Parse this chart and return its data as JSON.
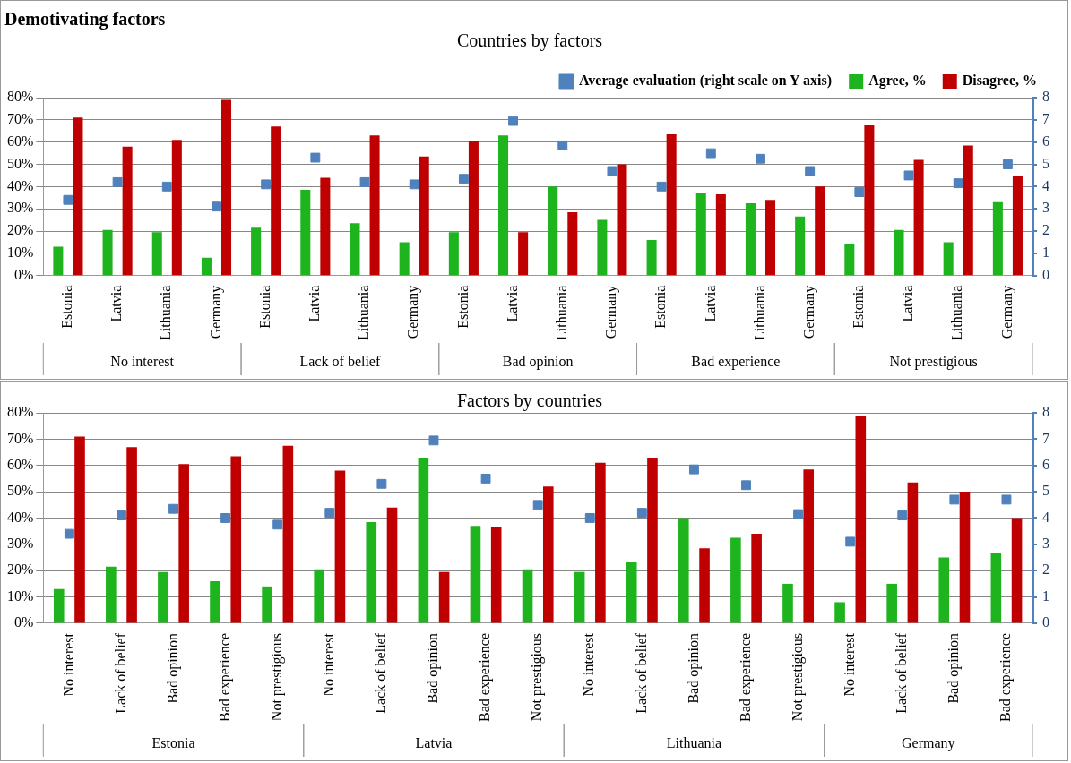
{
  "chart_data": [
    {
      "type": "bar",
      "title": "Demotivating factors",
      "subtitle": "Countries by factors",
      "categories": [
        "Estonia",
        "Latvia",
        "Lithuania",
        "Germany",
        "Estonia",
        "Latvia",
        "Lithuania",
        "Germany",
        "Estonia",
        "Latvia",
        "Lithuania",
        "Germany",
        "Estonia",
        "Latvia",
        "Lithuania",
        "Germany",
        "Estonia",
        "Latvia",
        "Lithuania",
        "Germany"
      ],
      "annotations": [
        "No interest",
        "Lack of belief",
        "Bad opinion",
        "Bad experience",
        "Not prestigious"
      ],
      "series": [
        {
          "name": "Agree, %",
          "color": "#1eb41e",
          "values": [
            13,
            20.5,
            19.5,
            8,
            21.5,
            38.5,
            23.5,
            15,
            19.5,
            63,
            40,
            25,
            16,
            37,
            32.5,
            26.5,
            14,
            20.5,
            15,
            33
          ]
        },
        {
          "name": "Disagree, %",
          "color": "#c00000",
          "values": [
            71,
            58,
            61,
            79,
            67,
            44,
            63,
            53.5,
            60.5,
            19.5,
            28.5,
            50,
            63.5,
            36.5,
            34,
            40,
            67.5,
            52,
            58.5,
            45
          ]
        },
        {
          "name": "Average evaluation (right scale on Y axis)",
          "type": "scatter",
          "axis": "y2",
          "color": "#4f81bd",
          "values": [
            3.4,
            4.2,
            4.0,
            3.1,
            4.1,
            5.3,
            4.2,
            4.1,
            4.35,
            6.95,
            5.85,
            4.7,
            4.0,
            5.5,
            5.25,
            4.7,
            3.75,
            4.5,
            4.15,
            5.0
          ]
        }
      ],
      "ylim": [
        0,
        80
      ],
      "yticks": [
        {
          "value": 0,
          "label": "0%"
        },
        {
          "value": 10,
          "label": "10%"
        },
        {
          "value": 20,
          "label": "20%"
        },
        {
          "value": 30,
          "label": "30%"
        },
        {
          "value": 40,
          "label": "40%"
        },
        {
          "value": 50,
          "label": "50%"
        },
        {
          "value": 60,
          "label": "60%"
        },
        {
          "value": 70,
          "label": "70%"
        },
        {
          "value": 80,
          "label": "80%"
        }
      ],
      "y2lim": [
        0,
        8
      ],
      "y2ticks": [
        0,
        1,
        2,
        3,
        4,
        5,
        6,
        7,
        8
      ],
      "grid": "y",
      "legend": "top",
      "marker": "square"
    },
    {
      "type": "bar",
      "title": "Factors by countries",
      "categories": [
        "No interest",
        "Lack of belief",
        "Bad opinion",
        "Bad experience",
        "Not prestigious",
        "No interest",
        "Lack of belief",
        "Bad opinion",
        "Bad experience",
        "Not prestigious",
        "No interest",
        "Lack of belief",
        "Bad opinion",
        "Bad experience",
        "Not prestigious",
        "No interest",
        "Lack of belief",
        "Bad opinion",
        "Bad experience"
      ],
      "annotations": [
        "Estonia",
        "Latvia",
        "Lithuania",
        "Germany"
      ],
      "series": [
        {
          "color": "#1eb41e",
          "values": [
            13,
            21.5,
            19.5,
            16,
            14,
            20.5,
            38.5,
            63,
            37,
            20.5,
            19.5,
            23.5,
            40,
            32.5,
            15,
            8,
            15,
            25,
            26.5
          ]
        },
        {
          "color": "#c00000",
          "values": [
            71,
            67,
            60.5,
            63.5,
            67.5,
            58,
            44,
            19.5,
            36.5,
            52,
            61,
            63,
            28.5,
            34,
            58.5,
            79,
            53.5,
            50,
            40
          ]
        },
        {
          "type": "scatter",
          "axis": "y2",
          "color": "#4f81bd",
          "values": [
            3.4,
            4.1,
            4.35,
            4.0,
            3.75,
            4.2,
            5.3,
            6.95,
            5.5,
            4.5,
            4.0,
            4.2,
            5.85,
            5.25,
            4.15,
            3.1,
            4.1,
            4.7,
            4.7
          ]
        }
      ],
      "ylim": [
        0,
        80
      ],
      "yticks": [
        {
          "value": 0,
          "label": "0%"
        },
        {
          "value": 10,
          "label": "10%"
        },
        {
          "value": 20,
          "label": "20%"
        },
        {
          "value": 30,
          "label": "30%"
        },
        {
          "value": 40,
          "label": "40%"
        },
        {
          "value": 50,
          "label": "50%"
        },
        {
          "value": 60,
          "label": "60%"
        },
        {
          "value": 70,
          "label": "70%"
        },
        {
          "value": 80,
          "label": "80%"
        }
      ],
      "y2lim": [
        0,
        8
      ],
      "y2ticks": [
        0,
        1,
        2,
        3,
        4,
        5,
        6,
        7,
        8
      ],
      "grid": "y",
      "marker": "square"
    }
  ]
}
